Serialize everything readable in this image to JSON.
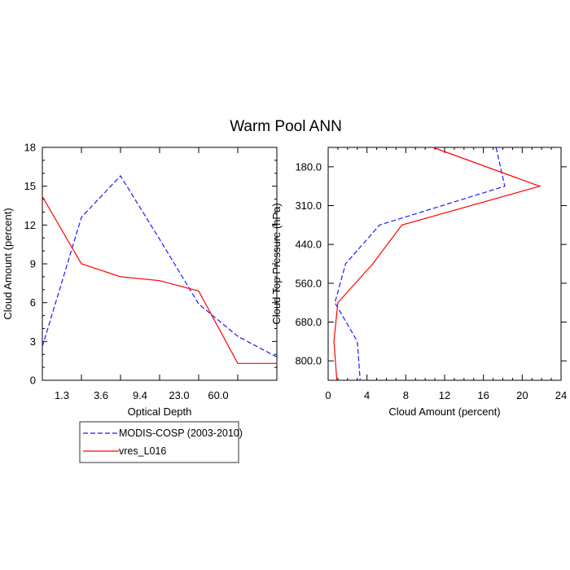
{
  "page_title": "Warm Pool ANN",
  "legend": {
    "entries": [
      {
        "label": "MODIS-COSP (2003-2010)",
        "color": "#1a1aff",
        "dash": true
      },
      {
        "label": "vres_L016",
        "color": "#ff0000",
        "dash": false
      }
    ]
  },
  "chart_data": [
    {
      "type": "line",
      "title": "",
      "xlabel": "Optical Depth",
      "ylabel": "Cloud Amount (percent)",
      "x_tick_labels": [
        "1.3",
        "3.6",
        "9.4",
        "23.0",
        "60.0"
      ],
      "x_categories_count": 7,
      "xlim": [
        0,
        6
      ],
      "ylim": [
        0,
        18
      ],
      "y_ticks": [
        0,
        3,
        6,
        9,
        12,
        15,
        18
      ],
      "series": [
        {
          "name": "MODIS-COSP (2003-2010)",
          "color": "#1a1aff",
          "dash": true,
          "x": [
            0,
            1,
            2,
            3,
            4,
            5,
            6
          ],
          "y": [
            2.6,
            12.6,
            15.8,
            10.9,
            5.9,
            3.4,
            1.8
          ]
        },
        {
          "name": "vres_L016",
          "color": "#ff0000",
          "dash": false,
          "x": [
            0,
            1,
            2,
            3,
            4,
            5,
            6
          ],
          "y": [
            14.2,
            9.0,
            8.0,
            7.7,
            6.9,
            1.3,
            1.3
          ]
        }
      ]
    },
    {
      "type": "line",
      "title": "",
      "xlabel": "Cloud Amount (percent)",
      "ylabel": "Cloud Top Pressure (hPa)",
      "xlim": [
        0,
        24
      ],
      "x_ticks": [
        0,
        4,
        8,
        12,
        16,
        20,
        24
      ],
      "x_tick_labels": [
        "0",
        "4",
        "8",
        "12",
        "16",
        "20",
        "24"
      ],
      "y_tick_labels": [
        "180.0",
        "310.0",
        "440.0",
        "560.0",
        "680.0",
        "800.0"
      ],
      "ylim_levels": [
        0,
        6
      ],
      "series": [
        {
          "name": "MODIS-COSP (2003-2010)",
          "color": "#1a1aff",
          "dash": true,
          "x": [
            17.3,
            18.2,
            5.3,
            1.8,
            0.7,
            3.0,
            3.3
          ],
          "y": [
            0,
            1,
            2,
            3,
            4,
            5,
            6
          ]
        },
        {
          "name": "vres_L016",
          "color": "#ff0000",
          "dash": false,
          "x": [
            10.8,
            21.8,
            7.6,
            4.6,
            1.0,
            0.6,
            0.9
          ],
          "y": [
            0,
            1,
            2,
            3,
            4,
            5,
            6
          ]
        }
      ]
    }
  ]
}
